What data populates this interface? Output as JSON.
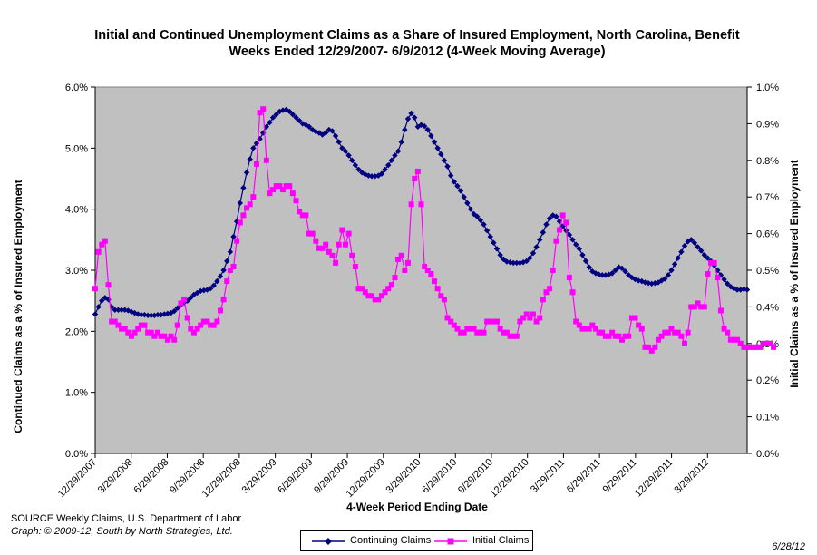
{
  "chart_data": {
    "type": "line",
    "title": "Initial and Continued Unemployment Claims as a Share of Insured Employment, North Carolina, Benefit Weeks Ended 12/29/2007- 6/9/2012 (4-Week Moving Average)",
    "xlabel": "4-Week Period Ending Date",
    "ylabel_left": "Continued Claims as a % of Insured Employment",
    "ylabel_right": "Initial Claims as a % of Insured Employment",
    "ylim_left": [
      0,
      6.0
    ],
    "ylim_right": [
      0,
      1.0
    ],
    "yticks_left": [
      "0.0%",
      "1.0%",
      "2.0%",
      "3.0%",
      "4.0%",
      "5.0%",
      "6.0%"
    ],
    "yticks_right": [
      "0.0%",
      "0.1%",
      "0.2%",
      "0.3%",
      "0.4%",
      "0.5%",
      "0.6%",
      "0.7%",
      "0.8%",
      "0.9%",
      "1.0%"
    ],
    "xticks": [
      "12/29/2007",
      "3/29/2008",
      "6/29/2008",
      "9/29/2008",
      "12/29/2008",
      "3/29/2009",
      "6/29/2009",
      "9/29/2009",
      "12/29/2009",
      "3/29/2010",
      "6/29/2010",
      "9/29/2010",
      "12/29/2010",
      "3/29/2011",
      "6/29/2011",
      "9/29/2011",
      "12/29/2011",
      "3/29/2012"
    ],
    "x_start": "12/29/2007",
    "x_end": "6/9/2012",
    "grid": false,
    "plot_background": "#C0C0C0",
    "legend_position": "bottom-center",
    "series": [
      {
        "name": "Continuing Claims",
        "axis": "left",
        "color": "#000080",
        "marker": "diamond",
        "values": [
          2.28,
          2.4,
          2.5,
          2.55,
          2.52,
          2.4,
          2.35,
          2.35,
          2.35,
          2.35,
          2.34,
          2.32,
          2.3,
          2.28,
          2.27,
          2.27,
          2.26,
          2.26,
          2.26,
          2.27,
          2.27,
          2.28,
          2.29,
          2.3,
          2.33,
          2.38,
          2.43,
          2.47,
          2.5,
          2.55,
          2.6,
          2.63,
          2.66,
          2.67,
          2.68,
          2.7,
          2.75,
          2.82,
          2.9,
          3.0,
          3.15,
          3.3,
          3.55,
          3.8,
          4.1,
          4.35,
          4.6,
          4.82,
          5.0,
          5.08,
          5.15,
          5.25,
          5.35,
          5.42,
          5.5,
          5.55,
          5.6,
          5.62,
          5.63,
          5.6,
          5.55,
          5.5,
          5.45,
          5.4,
          5.38,
          5.35,
          5.3,
          5.27,
          5.25,
          5.22,
          5.25,
          5.3,
          5.28,
          5.2,
          5.1,
          5.0,
          4.95,
          4.88,
          4.8,
          4.72,
          4.65,
          4.6,
          4.57,
          4.55,
          4.54,
          4.54,
          4.55,
          4.58,
          4.65,
          4.72,
          4.8,
          4.88,
          4.95,
          5.1,
          5.3,
          5.48,
          5.57,
          5.5,
          5.35,
          5.38,
          5.36,
          5.3,
          5.2,
          5.1,
          5.0,
          4.9,
          4.8,
          4.7,
          4.55,
          4.45,
          4.38,
          4.3,
          4.2,
          4.1,
          4.0,
          3.92,
          3.88,
          3.82,
          3.75,
          3.65,
          3.55,
          3.45,
          3.35,
          3.25,
          3.18,
          3.14,
          3.13,
          3.12,
          3.12,
          3.12,
          3.13,
          3.15,
          3.2,
          3.28,
          3.38,
          3.5,
          3.62,
          3.75,
          3.85,
          3.9,
          3.88,
          3.8,
          3.72,
          3.65,
          3.58,
          3.5,
          3.42,
          3.35,
          3.25,
          3.15,
          3.05,
          2.98,
          2.95,
          2.93,
          2.92,
          2.92,
          2.93,
          2.95,
          3.0,
          3.05,
          3.03,
          2.98,
          2.92,
          2.88,
          2.85,
          2.83,
          2.82,
          2.8,
          2.79,
          2.78,
          2.79,
          2.8,
          2.83,
          2.86,
          2.92,
          3.0,
          3.1,
          3.2,
          3.3,
          3.4,
          3.47,
          3.5,
          3.45,
          3.38,
          3.32,
          3.25,
          3.2,
          3.15,
          3.08,
          3.0,
          2.92,
          2.85,
          2.78,
          2.73,
          2.7,
          2.68,
          2.68,
          2.69,
          2.68
        ]
      },
      {
        "name": "Initial Claims",
        "axis": "right",
        "color": "#FF00FF",
        "marker": "square",
        "values": [
          0.45,
          0.55,
          0.57,
          0.58,
          0.46,
          0.36,
          0.36,
          0.35,
          0.34,
          0.34,
          0.33,
          0.32,
          0.33,
          0.34,
          0.35,
          0.35,
          0.33,
          0.33,
          0.32,
          0.33,
          0.32,
          0.32,
          0.31,
          0.32,
          0.31,
          0.35,
          0.41,
          0.42,
          0.37,
          0.34,
          0.33,
          0.34,
          0.35,
          0.36,
          0.36,
          0.35,
          0.35,
          0.36,
          0.39,
          0.42,
          0.47,
          0.5,
          0.51,
          0.58,
          0.63,
          0.65,
          0.67,
          0.68,
          0.7,
          0.79,
          0.93,
          0.94,
          0.8,
          0.71,
          0.72,
          0.73,
          0.73,
          0.72,
          0.73,
          0.73,
          0.71,
          0.69,
          0.66,
          0.65,
          0.65,
          0.6,
          0.6,
          0.58,
          0.56,
          0.56,
          0.57,
          0.55,
          0.54,
          0.52,
          0.57,
          0.61,
          0.57,
          0.6,
          0.54,
          0.51,
          0.45,
          0.45,
          0.44,
          0.43,
          0.43,
          0.42,
          0.42,
          0.43,
          0.44,
          0.45,
          0.46,
          0.48,
          0.53,
          0.54,
          0.5,
          0.52,
          0.68,
          0.75,
          0.77,
          0.68,
          0.51,
          0.5,
          0.49,
          0.47,
          0.45,
          0.43,
          0.42,
          0.37,
          0.36,
          0.35,
          0.34,
          0.33,
          0.33,
          0.34,
          0.34,
          0.34,
          0.33,
          0.33,
          0.33,
          0.36,
          0.36,
          0.36,
          0.36,
          0.34,
          0.33,
          0.33,
          0.32,
          0.32,
          0.32,
          0.36,
          0.37,
          0.38,
          0.37,
          0.38,
          0.36,
          0.37,
          0.42,
          0.44,
          0.45,
          0.5,
          0.58,
          0.61,
          0.65,
          0.63,
          0.48,
          0.44,
          0.36,
          0.35,
          0.34,
          0.34,
          0.34,
          0.35,
          0.34,
          0.33,
          0.33,
          0.32,
          0.32,
          0.33,
          0.32,
          0.32,
          0.31,
          0.32,
          0.32,
          0.37,
          0.37,
          0.35,
          0.34,
          0.29,
          0.29,
          0.28,
          0.29,
          0.31,
          0.32,
          0.33,
          0.33,
          0.34,
          0.33,
          0.33,
          0.32,
          0.3,
          0.33,
          0.4,
          0.4,
          0.41,
          0.4,
          0.4,
          0.49,
          0.52,
          0.52,
          0.48,
          0.39,
          0.34,
          0.33,
          0.31,
          0.31,
          0.31,
          0.3,
          0.29,
          0.29,
          0.29,
          0.29,
          0.29,
          0.29,
          0.3,
          0.3,
          0.3,
          0.29
        ]
      }
    ]
  },
  "footer": {
    "source_line": "SOURCE  Weekly Claims, U.S. Department of Labor",
    "graph_line": "Graph: © 2009-12, South by North Strategies, Ltd.",
    "date": "6/28/12"
  },
  "legend": {
    "continuing_label": "Continuing Claims",
    "initial_label": "Initial Claims"
  }
}
